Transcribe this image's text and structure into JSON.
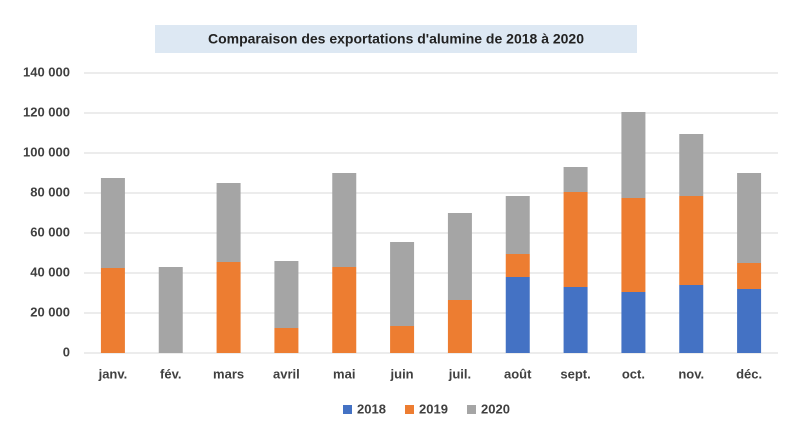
{
  "chart_data": {
    "type": "stacked_bar",
    "title": "Comparaison des exportations d'alumine de 2018 à 2020",
    "categories": [
      "janv.",
      "fév.",
      "mars",
      "avril",
      "mai",
      "juin",
      "juil.",
      "août",
      "sept.",
      "oct.",
      "nov.",
      "déc."
    ],
    "series": [
      {
        "name": "2018",
        "color": "#4472c4",
        "values": [
          0,
          0,
          0,
          0,
          0,
          0,
          0,
          38000,
          33000,
          30500,
          34000,
          32000
        ]
      },
      {
        "name": "2019",
        "color": "#ed7d31",
        "values": [
          42500,
          0,
          45500,
          12500,
          43000,
          13500,
          26500,
          11500,
          47500,
          47000,
          44500,
          13000
        ]
      },
      {
        "name": "2020",
        "color": "#a5a5a5",
        "values": [
          45000,
          43000,
          39500,
          33500,
          47000,
          42000,
          43500,
          29000,
          12500,
          43000,
          31000,
          45000
        ]
      }
    ],
    "ylim": [
      0,
      140000
    ],
    "yticks": [
      0,
      {
        "value": 20000,
        "label": "20 000"
      },
      {
        "value": 40000,
        "label": "40 000"
      },
      {
        "value": 60000,
        "label": "60 000"
      },
      {
        "value": 80000,
        "label": "80 000"
      },
      {
        "value": 100000,
        "label": "100 000"
      },
      {
        "value": 120000,
        "label": "120 000"
      },
      {
        "value": 140000,
        "label": "140 000"
      }
    ],
    "grid": true,
    "legend": "bottom"
  }
}
